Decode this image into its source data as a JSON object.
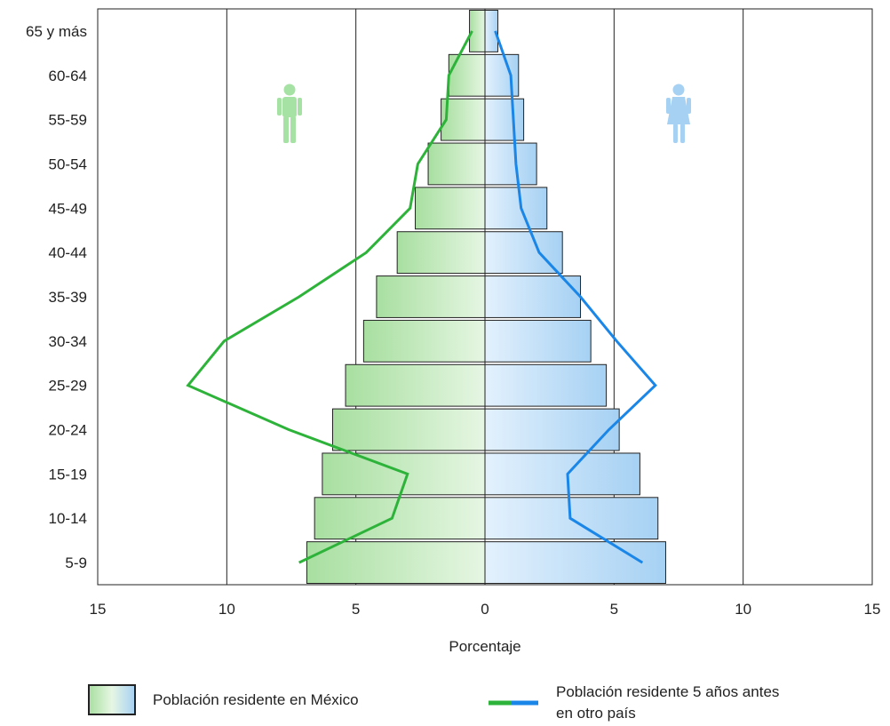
{
  "chart_data": {
    "type": "population-pyramid",
    "xlabel": "Porcentaje",
    "xlim": [
      -15,
      15
    ],
    "x_ticks": [
      -15,
      -10,
      -5,
      0,
      5,
      10,
      15
    ],
    "x_tick_labels": [
      "15",
      "10",
      "5",
      "0",
      "5",
      "10",
      "15"
    ],
    "categories": [
      "65 y más",
      "60-64",
      "55-59",
      "50-54",
      "45-49",
      "40-44",
      "35-39",
      "30-34",
      "25-29",
      "20-24",
      "15-19",
      "10-14",
      "5-9"
    ],
    "series": [
      {
        "name": "Población residente en México",
        "kind": "bars",
        "side_male_values": [
          0.6,
          1.4,
          1.7,
          2.2,
          2.7,
          3.4,
          4.2,
          4.7,
          5.4,
          5.9,
          6.3,
          6.6,
          6.9
        ],
        "side_female_values": [
          0.5,
          1.3,
          1.5,
          2.0,
          2.4,
          3.0,
          3.7,
          4.1,
          4.7,
          5.2,
          6.0,
          6.7,
          7.0
        ]
      },
      {
        "name": "Población residente 5 años antes en otro país",
        "kind": "lines",
        "side_male_values": [
          0.5,
          1.4,
          1.5,
          2.6,
          2.9,
          4.6,
          7.2,
          10.1,
          11.5,
          7.6,
          3.0,
          3.6,
          7.2
        ],
        "side_female_values": [
          0.4,
          1.0,
          1.1,
          1.2,
          1.4,
          2.1,
          3.7,
          5.1,
          6.6,
          4.8,
          3.2,
          3.3,
          6.1
        ]
      }
    ],
    "colors": {
      "male_line": "#2eb33a",
      "female_line": "#1a86e8",
      "male_bar_dark": "#a8dfa0",
      "male_bar_light": "#e6f6e3",
      "female_bar_dark": "#a6d1f3",
      "female_bar_light": "#e3f1fd"
    },
    "icons": [
      "male-person-icon",
      "female-person-icon"
    ],
    "grid": true
  },
  "legend": {
    "bars_label": "Población residente en México",
    "lines_label_line1": "Población residente 5 años antes",
    "lines_label_line2": "en otro país"
  }
}
